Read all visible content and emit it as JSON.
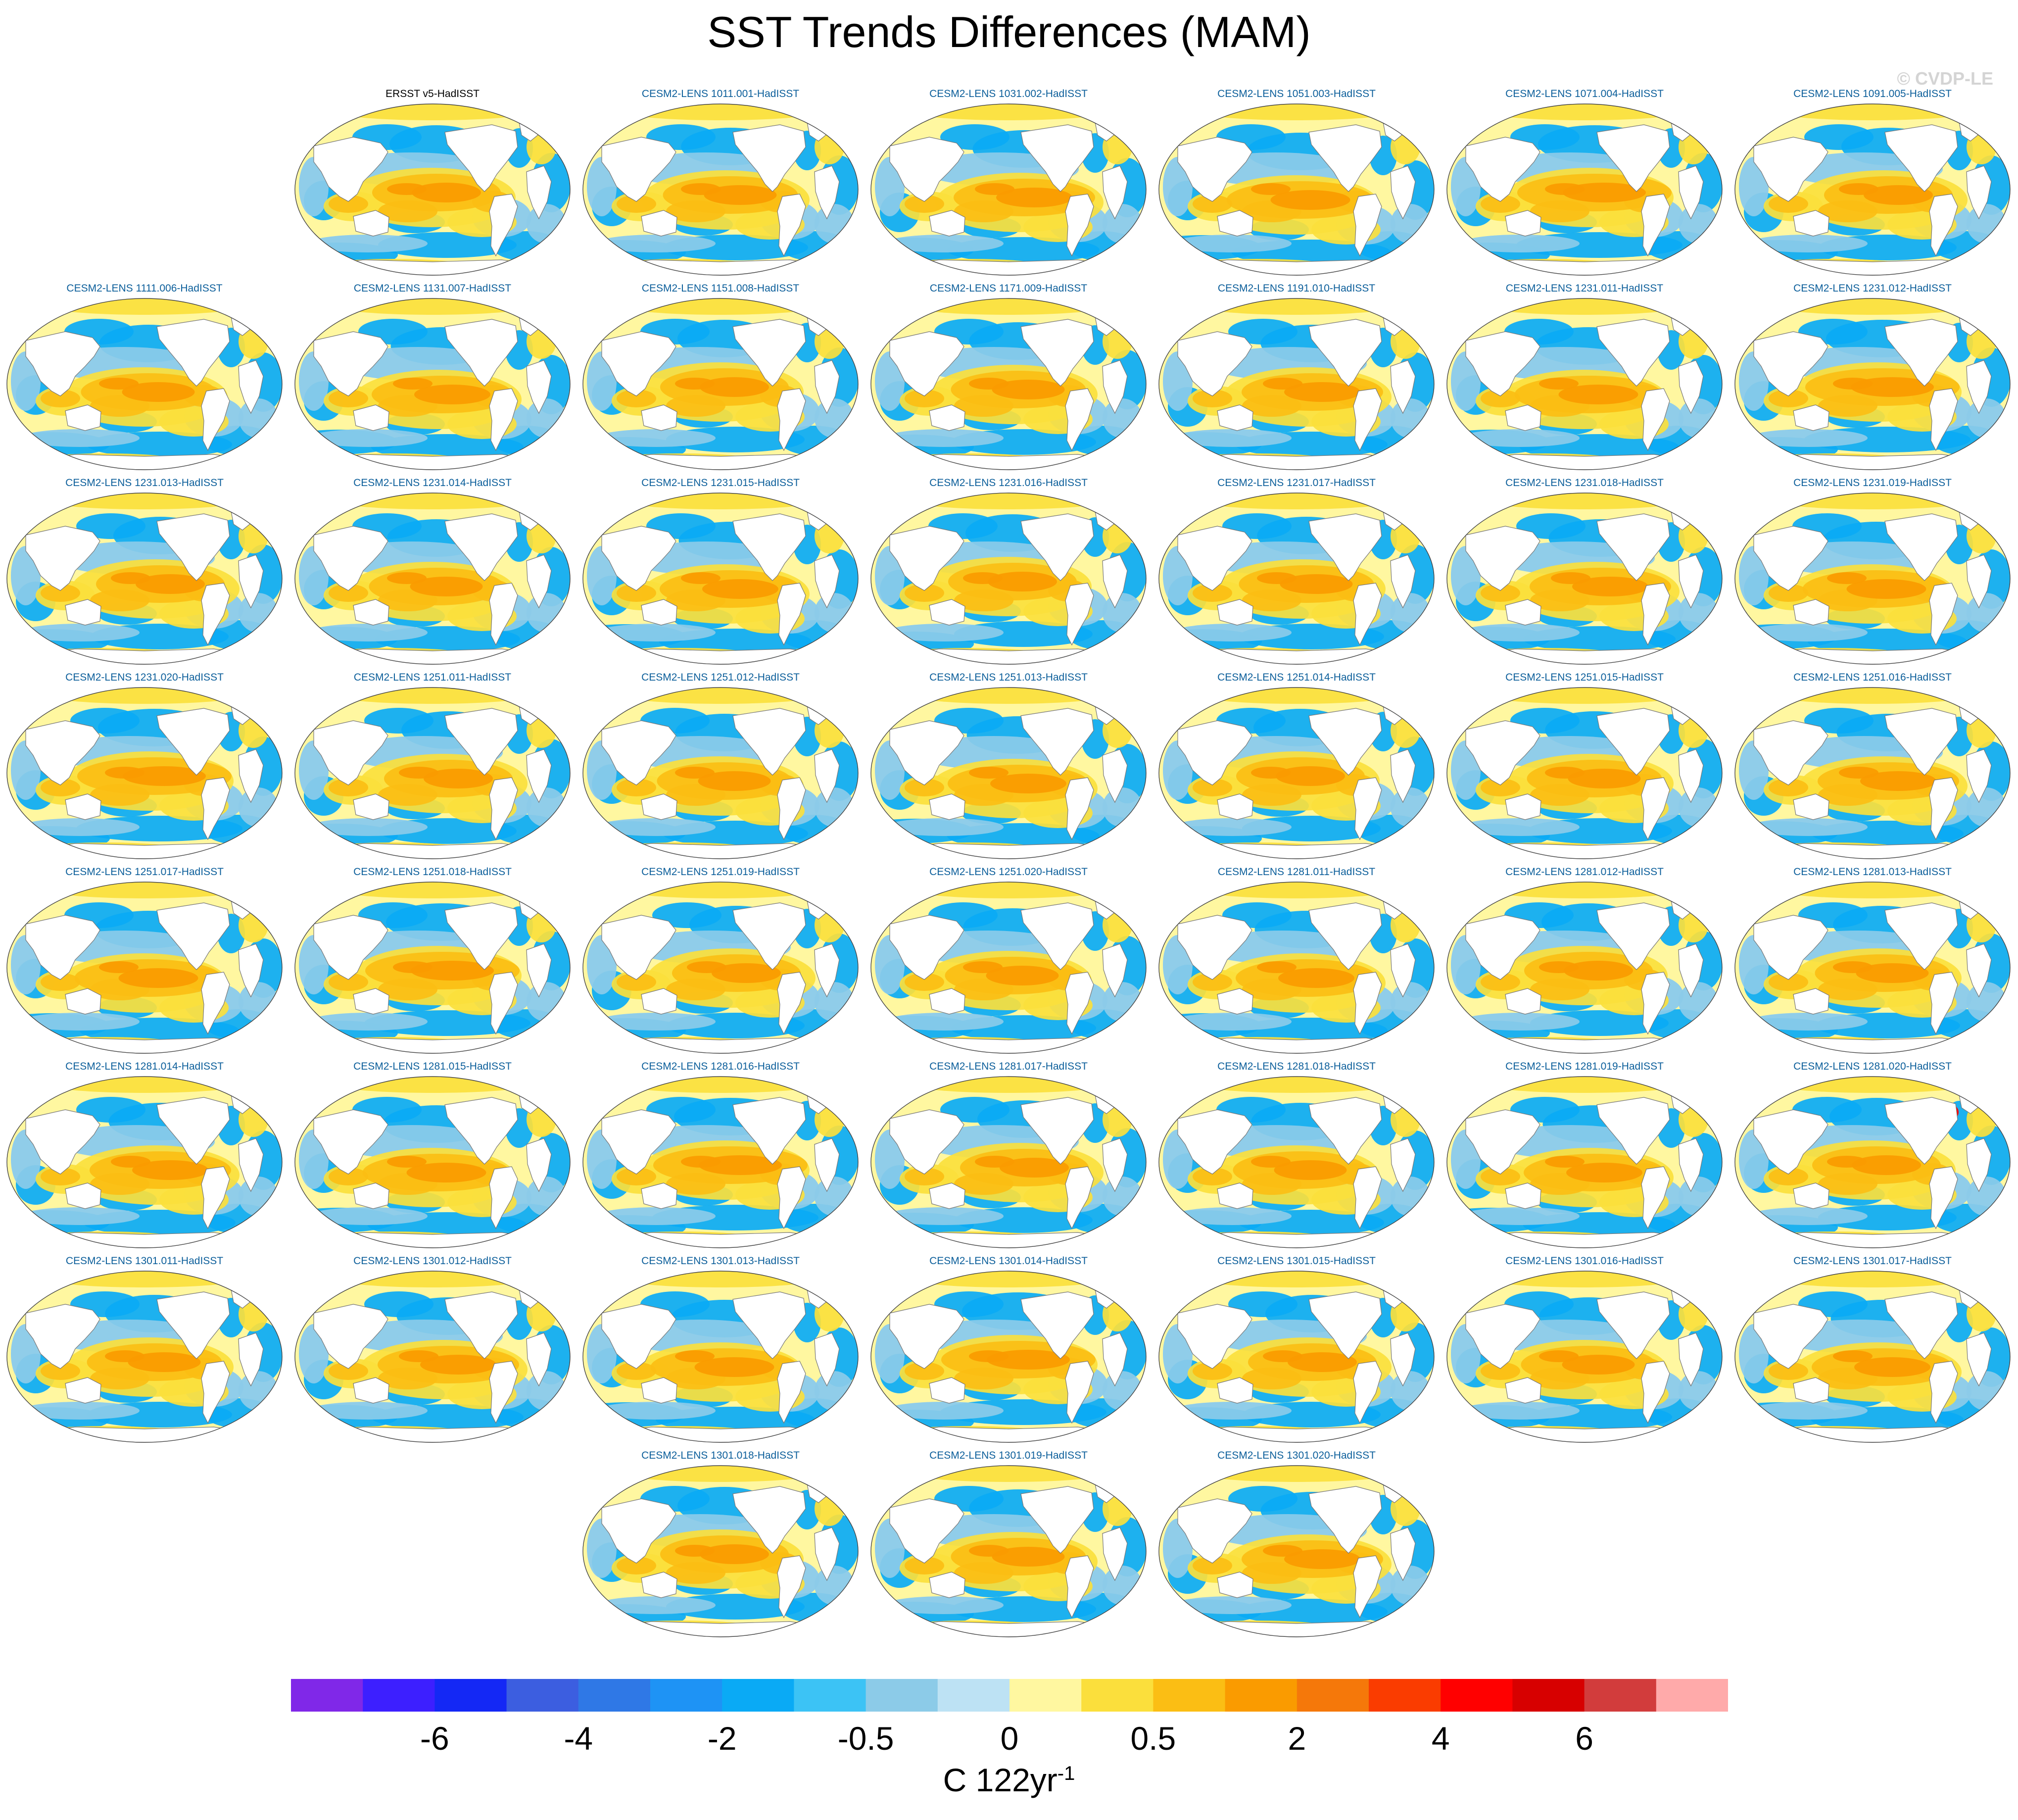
{
  "title": "SST Trends Differences (MAM)",
  "watermark": "© CVDP-LE",
  "panels": [
    {
      "label": "ERSST v5-HadISST",
      "row": 0,
      "col": 1,
      "observational": true,
      "variant": 0
    },
    {
      "label": "CESM2-LENS 1011.001-HadISST",
      "row": 0,
      "col": 2,
      "variant": 1
    },
    {
      "label": "CESM2-LENS 1031.002-HadISST",
      "row": 0,
      "col": 3,
      "variant": 2
    },
    {
      "label": "CESM2-LENS 1051.003-HadISST",
      "row": 0,
      "col": 4,
      "variant": 3
    },
    {
      "label": "CESM2-LENS 1071.004-HadISST",
      "row": 0,
      "col": 5,
      "variant": 4
    },
    {
      "label": "CESM2-LENS 1091.005-HadISST",
      "row": 0,
      "col": 6,
      "variant": 5
    },
    {
      "label": "CESM2-LENS 1111.006-HadISST",
      "row": 1,
      "col": 0,
      "variant": 6
    },
    {
      "label": "CESM2-LENS 1131.007-HadISST",
      "row": 1,
      "col": 1,
      "variant": 7
    },
    {
      "label": "CESM2-LENS 1151.008-HadISST",
      "row": 1,
      "col": 2,
      "variant": 0
    },
    {
      "label": "CESM2-LENS 1171.009-HadISST",
      "row": 1,
      "col": 3,
      "variant": 1
    },
    {
      "label": "CESM2-LENS 1191.010-HadISST",
      "row": 1,
      "col": 4,
      "variant": 2
    },
    {
      "label": "CESM2-LENS 1231.011-HadISST",
      "row": 1,
      "col": 5,
      "variant": 3
    },
    {
      "label": "CESM2-LENS 1231.012-HadISST",
      "row": 1,
      "col": 6,
      "variant": 4
    },
    {
      "label": "CESM2-LENS 1231.013-HadISST",
      "row": 2,
      "col": 0,
      "variant": 5
    },
    {
      "label": "CESM2-LENS 1231.014-HadISST",
      "row": 2,
      "col": 1,
      "variant": 6
    },
    {
      "label": "CESM2-LENS 1231.015-HadISST",
      "row": 2,
      "col": 2,
      "variant": 7
    },
    {
      "label": "CESM2-LENS 1231.016-HadISST",
      "row": 2,
      "col": 3,
      "variant": 0
    },
    {
      "label": "CESM2-LENS 1231.017-HadISST",
      "row": 2,
      "col": 4,
      "variant": 1
    },
    {
      "label": "CESM2-LENS 1231.018-HadISST",
      "row": 2,
      "col": 5,
      "variant": 2
    },
    {
      "label": "CESM2-LENS 1231.019-HadISST",
      "row": 2,
      "col": 6,
      "variant": 3
    },
    {
      "label": "CESM2-LENS 1231.020-HadISST",
      "row": 3,
      "col": 0,
      "variant": 4
    },
    {
      "label": "CESM2-LENS 1251.011-HadISST",
      "row": 3,
      "col": 1,
      "variant": 5
    },
    {
      "label": "CESM2-LENS 1251.012-HadISST",
      "row": 3,
      "col": 2,
      "variant": 6
    },
    {
      "label": "CESM2-LENS 1251.013-HadISST",
      "row": 3,
      "col": 3,
      "variant": 7
    },
    {
      "label": "CESM2-LENS 1251.014-HadISST",
      "row": 3,
      "col": 4,
      "variant": 0
    },
    {
      "label": "CESM2-LENS 1251.015-HadISST",
      "row": 3,
      "col": 5,
      "variant": 1
    },
    {
      "label": "CESM2-LENS 1251.016-HadISST",
      "row": 3,
      "col": 6,
      "variant": 2
    },
    {
      "label": "CESM2-LENS 1251.017-HadISST",
      "row": 4,
      "col": 0,
      "variant": 3
    },
    {
      "label": "CESM2-LENS 1251.018-HadISST",
      "row": 4,
      "col": 1,
      "variant": 4
    },
    {
      "label": "CESM2-LENS 1251.019-HadISST",
      "row": 4,
      "col": 2,
      "variant": 5
    },
    {
      "label": "CESM2-LENS 1251.020-HadISST",
      "row": 4,
      "col": 3,
      "variant": 6
    },
    {
      "label": "CESM2-LENS 1281.011-HadISST",
      "row": 4,
      "col": 4,
      "variant": 7
    },
    {
      "label": "CESM2-LENS 1281.012-HadISST",
      "row": 4,
      "col": 5,
      "variant": 0
    },
    {
      "label": "CESM2-LENS 1281.013-HadISST",
      "row": 4,
      "col": 6,
      "variant": 1
    },
    {
      "label": "CESM2-LENS 1281.014-HadISST",
      "row": 5,
      "col": 0,
      "variant": 2
    },
    {
      "label": "CESM2-LENS 1281.015-HadISST",
      "row": 5,
      "col": 1,
      "variant": 3
    },
    {
      "label": "CESM2-LENS 1281.016-HadISST",
      "row": 5,
      "col": 2,
      "variant": 4
    },
    {
      "label": "CESM2-LENS 1281.017-HadISST",
      "row": 5,
      "col": 3,
      "variant": 5
    },
    {
      "label": "CESM2-LENS 1281.018-HadISST",
      "row": 5,
      "col": 4,
      "variant": 6
    },
    {
      "label": "CESM2-LENS 1281.019-HadISST",
      "row": 5,
      "col": 5,
      "variant": 7
    },
    {
      "label": "CESM2-LENS 1281.020-HadISST",
      "row": 5,
      "col": 6,
      "variant": 0,
      "hotspot": true
    },
    {
      "label": "CESM2-LENS 1301.011-HadISST",
      "row": 6,
      "col": 0,
      "variant": 1
    },
    {
      "label": "CESM2-LENS 1301.012-HadISST",
      "row": 6,
      "col": 1,
      "variant": 2
    },
    {
      "label": "CESM2-LENS 1301.013-HadISST",
      "row": 6,
      "col": 2,
      "variant": 3
    },
    {
      "label": "CESM2-LENS 1301.014-HadISST",
      "row": 6,
      "col": 3,
      "variant": 4
    },
    {
      "label": "CESM2-LENS 1301.015-HadISST",
      "row": 6,
      "col": 4,
      "variant": 5
    },
    {
      "label": "CESM2-LENS 1301.016-HadISST",
      "row": 6,
      "col": 5,
      "variant": 6
    },
    {
      "label": "CESM2-LENS 1301.017-HadISST",
      "row": 6,
      "col": 6,
      "variant": 7
    },
    {
      "label": "CESM2-LENS 1301.018-HadISST",
      "row": 7,
      "col": 2,
      "variant": 0
    },
    {
      "label": "CESM2-LENS 1301.019-HadISST",
      "row": 7,
      "col": 3,
      "variant": 1
    },
    {
      "label": "CESM2-LENS 1301.020-HadISST",
      "row": 7,
      "col": 4,
      "variant": 2
    }
  ],
  "colorbar": {
    "colors": [
      "#8028e8",
      "#3d1fff",
      "#1428f5",
      "#3c5ee0",
      "#2f78e6",
      "#1e93f5",
      "#0aaaf5",
      "#3cc3f5",
      "#8ccbe8",
      "#bde2f4",
      "#fff7a0",
      "#fbdf3c",
      "#fbbe14",
      "#fa9b00",
      "#f5780a",
      "#fa3c00",
      "#ff0000",
      "#d70000",
      "#d23c3c",
      "#ffaaaa"
    ],
    "tick_labels": [
      "-6",
      "-4",
      "-2",
      "-0.5",
      "0",
      "0.5",
      "2",
      "4",
      "6"
    ],
    "tick_boundaries": [
      2,
      4,
      6,
      8,
      10,
      12,
      14,
      16,
      18
    ],
    "units_main": "C 122yr",
    "units_exp": "-1"
  }
}
